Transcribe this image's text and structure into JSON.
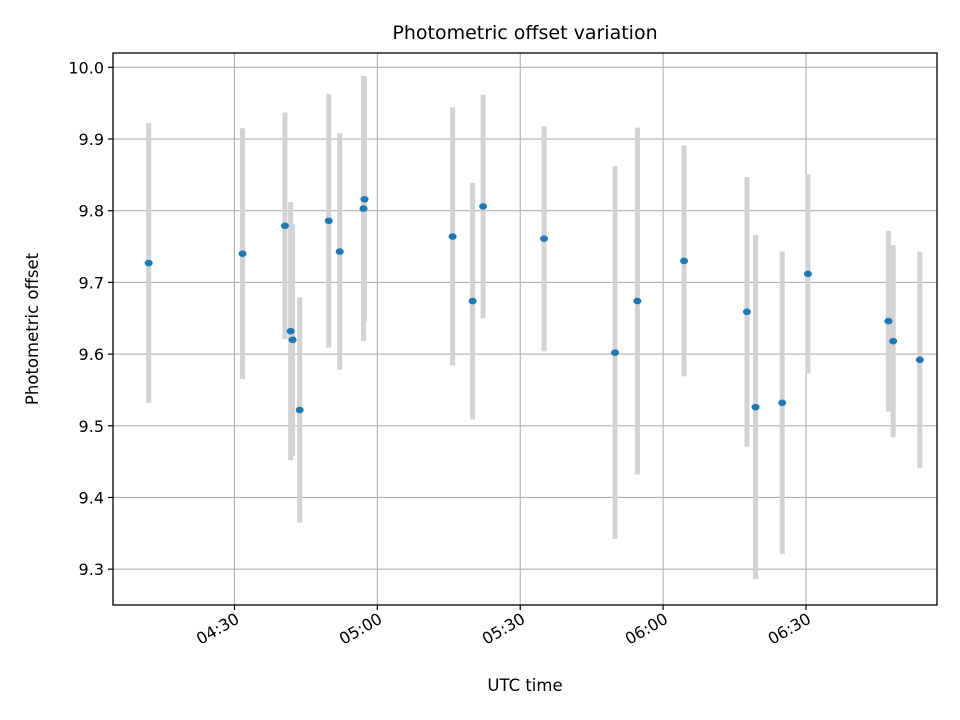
{
  "chart_data": {
    "type": "scatter",
    "title": "Photometric offset variation",
    "xlabel": "UTC time",
    "ylabel": "Photometric offset",
    "x_unit": "minutes after 04:00 UTC",
    "xlim": [
      4.5,
      177.5
    ],
    "ylim": [
      9.25,
      10.02
    ],
    "x_ticks": [
      {
        "value": 30,
        "label": "04:30"
      },
      {
        "value": 60,
        "label": "05:00"
      },
      {
        "value": 90,
        "label": "05:30"
      },
      {
        "value": 120,
        "label": "06:00"
      },
      {
        "value": 150,
        "label": "06:30"
      }
    ],
    "y_ticks": [
      {
        "value": 9.3,
        "label": "9.3"
      },
      {
        "value": 9.4,
        "label": "9.4"
      },
      {
        "value": 9.5,
        "label": "9.5"
      },
      {
        "value": 9.6,
        "label": "9.6"
      },
      {
        "value": 9.7,
        "label": "9.7"
      },
      {
        "value": 9.8,
        "label": "9.8"
      },
      {
        "value": 9.9,
        "label": "9.9"
      },
      {
        "value": 10.0,
        "label": "10.0"
      }
    ],
    "grid": true,
    "colors": {
      "points": "#1f77b4",
      "errorbars": "#d3d3d3",
      "grid": "#b0b0b0"
    },
    "series": [
      {
        "name": "offset",
        "points": [
          {
            "x": 12.0,
            "y": 9.727,
            "yerr": 0.195
          },
          {
            "x": 31.7,
            "y": 9.74,
            "yerr": 0.175
          },
          {
            "x": 40.6,
            "y": 9.779,
            "yerr": 0.158
          },
          {
            "x": 41.8,
            "y": 9.632,
            "yerr": 0.18
          },
          {
            "x": 42.2,
            "y": 9.62,
            "yerr": 0.162
          },
          {
            "x": 43.7,
            "y": 9.522,
            "yerr": 0.157
          },
          {
            "x": 49.8,
            "y": 9.786,
            "yerr": 0.177
          },
          {
            "x": 52.1,
            "y": 9.743,
            "yerr": 0.165
          },
          {
            "x": 57.1,
            "y": 9.803,
            "yerr": 0.185
          },
          {
            "x": 57.3,
            "y": 9.816,
            "yerr": 0.17
          },
          {
            "x": 75.8,
            "y": 9.764,
            "yerr": 0.18
          },
          {
            "x": 80.0,
            "y": 9.674,
            "yerr": 0.165
          },
          {
            "x": 82.2,
            "y": 9.806,
            "yerr": 0.156
          },
          {
            "x": 95.0,
            "y": 9.761,
            "yerr": 0.157
          },
          {
            "x": 109.9,
            "y": 9.602,
            "yerr": 0.26
          },
          {
            "x": 114.6,
            "y": 9.674,
            "yerr": 0.242
          },
          {
            "x": 124.4,
            "y": 9.73,
            "yerr": 0.161
          },
          {
            "x": 137.6,
            "y": 9.659,
            "yerr": 0.188
          },
          {
            "x": 139.4,
            "y": 9.526,
            "yerr": 0.24
          },
          {
            "x": 145.0,
            "y": 9.532,
            "yerr": 0.211
          },
          {
            "x": 150.4,
            "y": 9.712,
            "yerr": 0.139
          },
          {
            "x": 167.3,
            "y": 9.646,
            "yerr": 0.126
          },
          {
            "x": 168.3,
            "y": 9.618,
            "yerr": 0.134
          },
          {
            "x": 173.9,
            "y": 9.592,
            "yerr": 0.151
          }
        ]
      }
    ]
  }
}
